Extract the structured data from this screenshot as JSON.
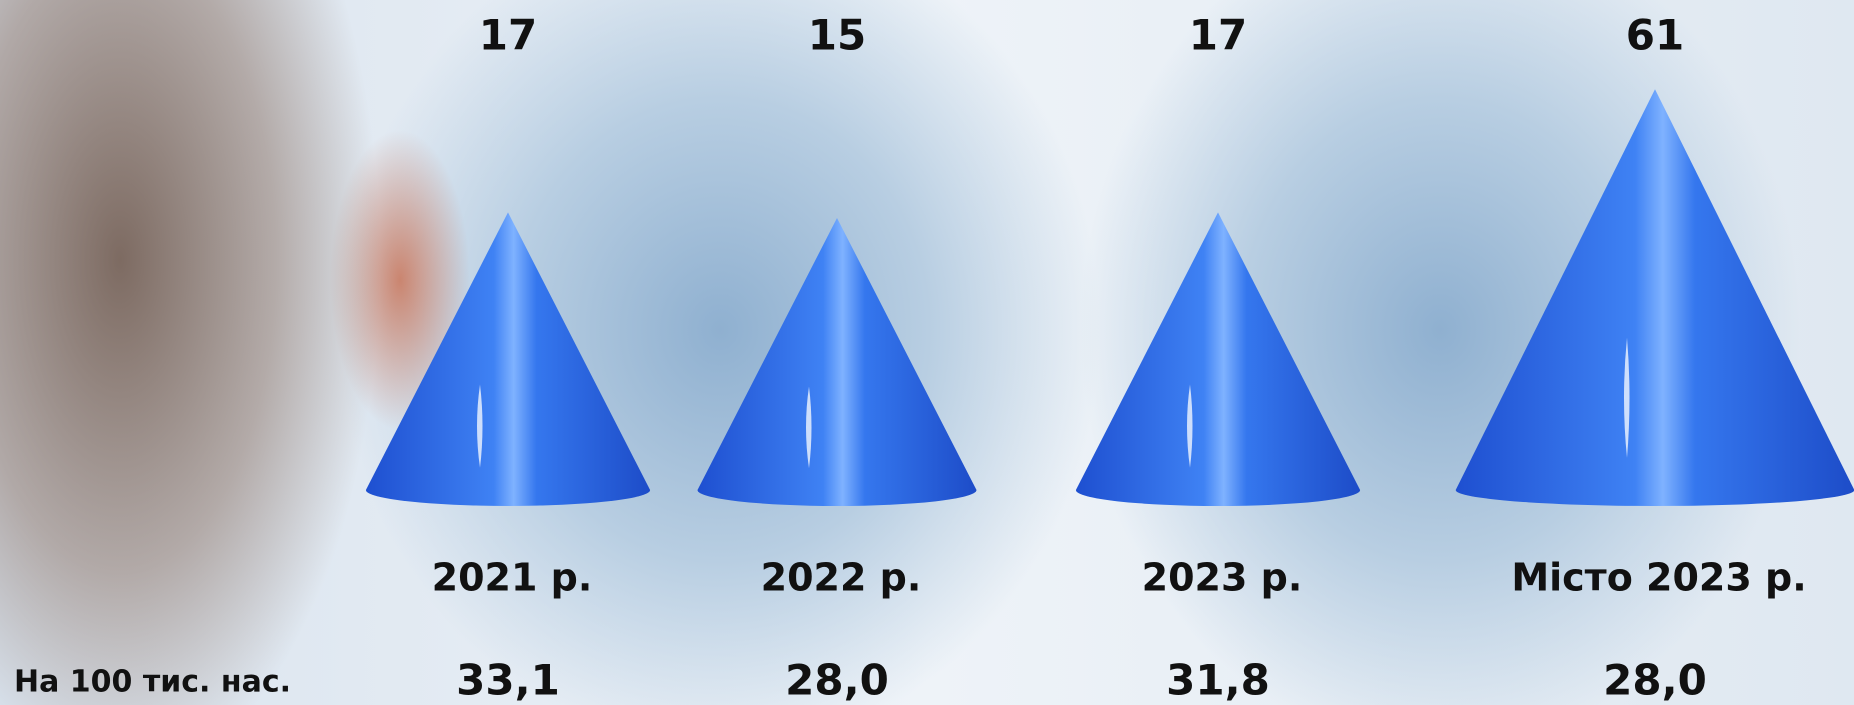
{
  "chart_data": {
    "type": "cone",
    "categories": [
      "2021 р.",
      "2022 р.",
      "2023 р.",
      "Місто 2023 р."
    ],
    "values": [
      17,
      15,
      17,
      61
    ],
    "color": "#2f6fe8",
    "rate_label": "На 100 тис. нас.",
    "rates": [
      33.1,
      28.0,
      31.8,
      28.0
    ],
    "rate_labels": [
      "33,1",
      "28,0",
      "31,8",
      "28,0"
    ]
  }
}
